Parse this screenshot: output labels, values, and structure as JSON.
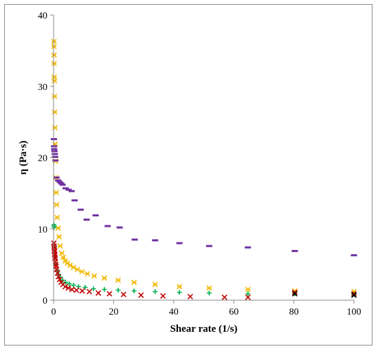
{
  "chart_data": {
    "type": "scatter",
    "title": "",
    "xlabel": "Shear rate (1/s)",
    "ylabel": "η (Pa·s)",
    "xlim": [
      0,
      100
    ],
    "ylim": [
      0,
      40
    ],
    "xticks": [
      0,
      20,
      40,
      60,
      80,
      100
    ],
    "yticks": [
      0,
      10,
      20,
      30,
      40
    ],
    "grid": false,
    "legend": "none",
    "series": [
      {
        "color": "#F2B800",
        "marker": "x-star",
        "points": [
          [
            0.1,
            36.3
          ],
          [
            0.12,
            35.6
          ],
          [
            0.15,
            34.4
          ],
          [
            0.18,
            33.2
          ],
          [
            0.22,
            31.3
          ],
          [
            0.26,
            30.8
          ],
          [
            0.3,
            28.6
          ],
          [
            0.36,
            26.4
          ],
          [
            0.42,
            24.2
          ],
          [
            0.5,
            21.9
          ],
          [
            0.6,
            19.5
          ],
          [
            0.72,
            17.2
          ],
          [
            0.85,
            15.1
          ],
          [
            1.0,
            13.4
          ],
          [
            1.2,
            11.6
          ],
          [
            1.5,
            10.1
          ],
          [
            1.8,
            8.9
          ],
          [
            2.2,
            7.6
          ],
          [
            2.7,
            6.6
          ],
          [
            3.2,
            6.0
          ],
          [
            3.9,
            5.5
          ],
          [
            4.6,
            5.2
          ],
          [
            5.5,
            4.9
          ],
          [
            6.6,
            4.6
          ],
          [
            7.9,
            4.3
          ],
          [
            9.4,
            4.0
          ],
          [
            11.2,
            3.7
          ],
          [
            13.5,
            3.4
          ],
          [
            16.9,
            3.1
          ],
          [
            21.5,
            2.8
          ],
          [
            26.8,
            2.5
          ],
          [
            33.8,
            2.2
          ],
          [
            41.9,
            1.9
          ],
          [
            51.8,
            1.7
          ],
          [
            64.7,
            1.5
          ],
          [
            80.3,
            1.3
          ],
          [
            100.0,
            1.2
          ]
        ]
      },
      {
        "color": "#7030A0",
        "marker": "dash",
        "points": [
          [
            0.1,
            22.6
          ],
          [
            0.15,
            21.6
          ],
          [
            0.2,
            21.2
          ],
          [
            0.3,
            20.9
          ],
          [
            0.4,
            20.5
          ],
          [
            0.5,
            20.1
          ],
          [
            0.6,
            19.6
          ],
          [
            1.0,
            17.2
          ],
          [
            1.5,
            16.8
          ],
          [
            2.0,
            16.6
          ],
          [
            2.5,
            16.4
          ],
          [
            3.0,
            16.2
          ],
          [
            4.0,
            15.7
          ],
          [
            5.0,
            15.5
          ],
          [
            6.0,
            15.3
          ],
          [
            7.0,
            14.0
          ],
          [
            9.0,
            12.7
          ],
          [
            11.0,
            11.3
          ],
          [
            14.0,
            11.9
          ],
          [
            18.0,
            10.4
          ],
          [
            22.0,
            10.2
          ],
          [
            27.0,
            8.5
          ],
          [
            33.8,
            8.4
          ],
          [
            41.9,
            8.0
          ],
          [
            51.8,
            7.6
          ],
          [
            64.7,
            7.4
          ],
          [
            80.3,
            6.9
          ],
          [
            100.0,
            6.3
          ]
        ]
      },
      {
        "color": "#00B050",
        "marker": "plus",
        "points": [
          [
            0.1,
            10.6
          ],
          [
            0.15,
            10.4
          ],
          [
            0.2,
            10.2
          ],
          [
            0.3,
            7.5
          ],
          [
            0.5,
            6.0
          ],
          [
            0.8,
            5.0
          ],
          [
            1.2,
            4.2
          ],
          [
            1.7,
            3.6
          ],
          [
            2.3,
            3.2
          ],
          [
            3.0,
            2.8
          ],
          [
            4.0,
            2.5
          ],
          [
            5.2,
            2.3
          ],
          [
            6.6,
            2.1
          ],
          [
            8.3,
            1.9
          ],
          [
            10.5,
            1.8
          ],
          [
            13.3,
            1.6
          ],
          [
            16.9,
            1.5
          ],
          [
            21.5,
            1.4
          ],
          [
            26.8,
            1.3
          ],
          [
            33.8,
            1.2
          ],
          [
            41.9,
            1.1
          ],
          [
            51.8,
            1.0
          ],
          [
            64.7,
            0.9
          ],
          [
            80.3,
            0.9
          ],
          [
            100.0,
            0.8
          ]
        ]
      },
      {
        "color": "#C00000",
        "marker": "x",
        "points": [
          [
            0.1,
            8.0
          ],
          [
            0.15,
            7.6
          ],
          [
            0.2,
            7.3
          ],
          [
            0.25,
            7.0
          ],
          [
            0.3,
            6.8
          ],
          [
            0.35,
            6.5
          ],
          [
            0.4,
            6.3
          ],
          [
            0.45,
            6.0
          ],
          [
            0.5,
            5.8
          ],
          [
            0.6,
            5.4
          ],
          [
            0.7,
            5.0
          ],
          [
            0.8,
            4.7
          ],
          [
            1.0,
            4.3
          ],
          [
            1.3,
            3.8
          ],
          [
            1.6,
            3.3
          ],
          [
            2.0,
            2.9
          ],
          [
            2.5,
            2.5
          ],
          [
            3.1,
            2.2
          ],
          [
            3.9,
            1.9
          ],
          [
            4.9,
            1.7
          ],
          [
            6.1,
            1.5
          ],
          [
            7.6,
            1.4
          ],
          [
            9.5,
            1.3
          ],
          [
            11.9,
            1.2
          ],
          [
            14.9,
            1.0
          ],
          [
            18.6,
            0.9
          ],
          [
            23.3,
            0.8
          ],
          [
            29.1,
            0.7
          ],
          [
            36.4,
            0.6
          ],
          [
            45.5,
            0.5
          ],
          [
            56.9,
            0.4
          ],
          [
            64.7,
            0.4
          ],
          [
            80.3,
            1.1
          ],
          [
            100.0,
            0.9
          ]
        ]
      },
      {
        "color": "#000000",
        "marker": "x",
        "points": [
          [
            80.3,
            0.9
          ],
          [
            100.0,
            0.7
          ]
        ]
      }
    ]
  }
}
